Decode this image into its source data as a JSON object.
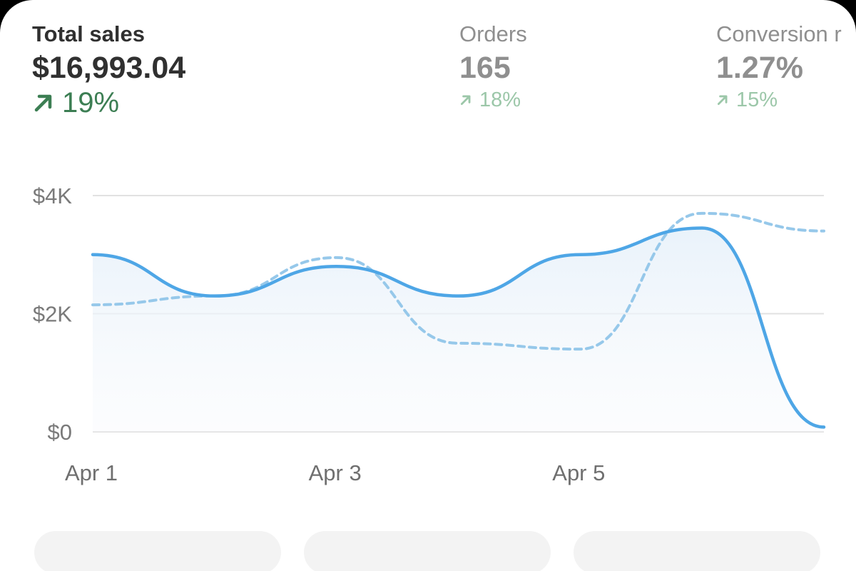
{
  "metrics": {
    "total_sales": {
      "label": "Total sales",
      "value": "$16,993.04",
      "change": "19%"
    },
    "orders": {
      "label": "Orders",
      "value": "165",
      "change": "18%"
    },
    "conversion": {
      "label": "Conversion r",
      "value": "1.27%",
      "change": "15%"
    }
  },
  "colors": {
    "current_line": "#4ea6e6",
    "previous_line": "#96c8ea",
    "positive_strong": "#3c7e53",
    "positive_muted": "#9cc7a9"
  },
  "icons": {
    "change": "arrow-up-right-icon"
  },
  "chart_data": {
    "type": "line",
    "x": [
      "Apr 1",
      "",
      "Apr 3",
      "",
      "Apr 5",
      "",
      ""
    ],
    "xticks": [
      "Apr 1",
      "Apr 3",
      "Apr 5"
    ],
    "yticks": [
      "$4K",
      "$2K",
      "$0"
    ],
    "ylim": [
      0,
      4000
    ],
    "grid": true,
    "series": [
      {
        "style": "solid",
        "values": [
          3000,
          2300,
          2800,
          2300,
          3000,
          3450,
          80
        ]
      },
      {
        "style": "dashed",
        "values": [
          2150,
          2300,
          2950,
          1500,
          1400,
          3700,
          3400
        ]
      }
    ]
  }
}
